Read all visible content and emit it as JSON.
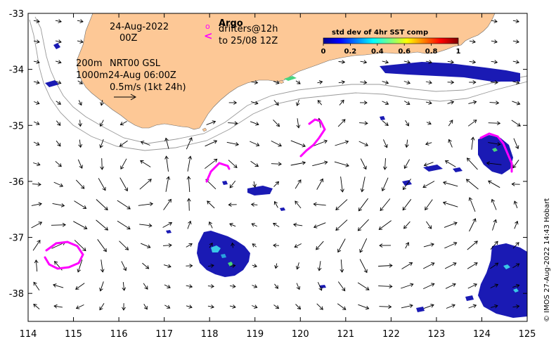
{
  "map": {
    "xlim": [
      114,
      125
    ],
    "ylim": [
      -38.5,
      -33
    ],
    "x_ticks": [
      {
        "value": 114,
        "label": "114"
      },
      {
        "value": 115,
        "label": "115"
      },
      {
        "value": 116,
        "label": "116"
      },
      {
        "value": 117,
        "label": "117"
      },
      {
        "value": 118,
        "label": "118"
      },
      {
        "value": 119,
        "label": "119"
      },
      {
        "value": 120,
        "label": "120"
      },
      {
        "value": 121,
        "label": "121"
      },
      {
        "value": 122,
        "label": "122"
      },
      {
        "value": 123,
        "label": "123"
      },
      {
        "value": 124,
        "label": "124"
      },
      {
        "value": 125,
        "label": "125"
      }
    ],
    "y_ticks": [
      {
        "value": -33,
        "label": "-33"
      },
      {
        "value": -34,
        "label": "-34"
      },
      {
        "value": -35,
        "label": "-35"
      },
      {
        "value": -36,
        "label": "-36"
      },
      {
        "value": -37,
        "label": "-37"
      },
      {
        "value": -38,
        "label": "-38"
      }
    ],
    "colors": {
      "land": "#fdc896",
      "arrow": "#000000",
      "drifter": "#ff00ff",
      "isobath": "#999999"
    }
  },
  "annotations": {
    "date": "24-Aug-2022",
    "time": "00Z",
    "isobath_200": "200m",
    "isobath_1000": "1000m",
    "product": "NRT00 GSL",
    "product_time": "24-Aug 06:00Z",
    "scale": "0.5m/s (1kt 24h)"
  },
  "legend": {
    "argo_marker": "o",
    "argo": "Argo",
    "drifter_marker": "<",
    "drifter_line1": "drifters@12h",
    "drifter_line2": "to 25/08 12Z"
  },
  "colorbar": {
    "title": "std dev of 4hr SST comp",
    "ticks": [
      "0",
      "0.2",
      "0.4",
      "0.6",
      "0.8",
      "1"
    ]
  },
  "credit": "© IMOS 27-Aug-2022 14:43 Hobart"
}
